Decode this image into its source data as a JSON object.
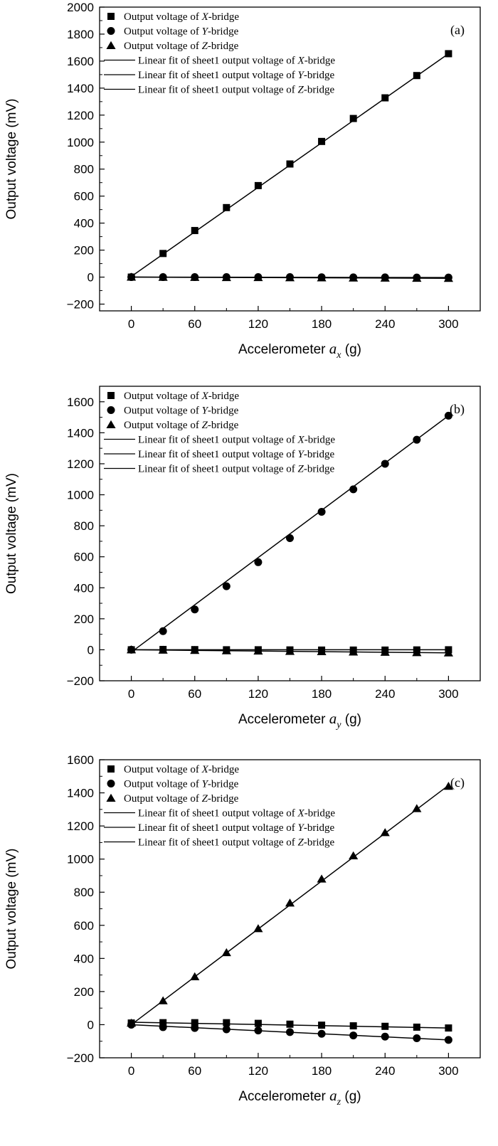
{
  "chart_data": [
    {
      "type": "scatter",
      "panel_label": "(a)",
      "xlabel": {
        "text": "Accelerometer ",
        "var": "a",
        "sub": "x",
        "unit": " (g)"
      },
      "ylabel": "Output voltage (mV)",
      "xlim": [
        -30,
        330
      ],
      "ylim": [
        -250,
        2000
      ],
      "xticks": [
        0,
        60,
        120,
        180,
        240,
        300
      ],
      "yticks": [
        -200,
        0,
        200,
        400,
        600,
        800,
        1000,
        1200,
        1400,
        1600,
        1800,
        2000
      ],
      "x": [
        0,
        30,
        60,
        90,
        120,
        150,
        180,
        210,
        240,
        270,
        300
      ],
      "series": [
        {
          "name": "X-bridge",
          "marker": "square",
          "values": [
            0,
            175,
            345,
            515,
            678,
            838,
            1005,
            1175,
            1328,
            1493,
            1655
          ]
        },
        {
          "name": "Y-bridge",
          "marker": "circle",
          "values": [
            0,
            0,
            0,
            0,
            0,
            0,
            -1,
            -2,
            -2,
            -3,
            -3
          ]
        },
        {
          "name": "Z-bridge",
          "marker": "triangle",
          "values": [
            0,
            -1,
            -2,
            -3,
            -3,
            -4,
            -5,
            -6,
            -7,
            -8,
            -9
          ]
        }
      ],
      "fits": [
        {
          "series": "X-bridge",
          "points": [
            [
              0,
              5
            ],
            [
              300,
              1655
            ]
          ]
        },
        {
          "series": "Y-bridge",
          "points": [
            [
              0,
              0
            ],
            [
              300,
              -3
            ]
          ]
        },
        {
          "series": "Z-bridge",
          "points": [
            [
              0,
              0
            ],
            [
              300,
              -9
            ]
          ]
        }
      ],
      "legend": {
        "position": "top-left",
        "entries": [
          {
            "marker": "square",
            "pre": "Output voltage of ",
            "var": "X",
            "post": "-bridge"
          },
          {
            "marker": "circle",
            "pre": "Output voltage of ",
            "var": "Y",
            "post": "-bridge"
          },
          {
            "marker": "triangle",
            "pre": "Output voltage of ",
            "var": "Z",
            "post": "-bridge"
          },
          {
            "marker": "line",
            "pre": "Linear fit of sheet1 output voltage of ",
            "var": "X",
            "post": "-bridge"
          },
          {
            "marker": "line",
            "pre": "Linear fit of sheet1 output voltage of ",
            "var": "Y",
            "post": "-bridge"
          },
          {
            "marker": "line",
            "pre": "Linear fit of sheet1 output voltage of ",
            "var": "Z",
            "post": "-bridge"
          }
        ]
      }
    },
    {
      "type": "scatter",
      "panel_label": "(b)",
      "xlabel": {
        "text": "Accelerometer ",
        "var": "a",
        "sub": "y",
        "unit": " (g)"
      },
      "ylabel": "Output voltage (mV)",
      "xlim": [
        -30,
        330
      ],
      "ylim": [
        -200,
        1700
      ],
      "xticks": [
        0,
        60,
        120,
        180,
        240,
        300
      ],
      "yticks": [
        -200,
        0,
        200,
        400,
        600,
        800,
        1000,
        1200,
        1400,
        1600
      ],
      "x": [
        0,
        30,
        60,
        90,
        120,
        150,
        180,
        210,
        240,
        270,
        300
      ],
      "series": [
        {
          "name": "X-bridge",
          "marker": "square",
          "values": [
            0,
            2,
            1,
            0,
            0,
            -1,
            -2,
            -2,
            -2,
            -1,
            0
          ]
        },
        {
          "name": "Y-bridge",
          "marker": "circle",
          "values": [
            0,
            120,
            260,
            410,
            565,
            720,
            890,
            1035,
            1200,
            1355,
            1510
          ]
        },
        {
          "name": "Z-bridge",
          "marker": "triangle",
          "values": [
            0,
            -2,
            -4,
            -6,
            -8,
            -10,
            -12,
            -14,
            -16,
            -18,
            -20
          ]
        }
      ],
      "fits": [
        {
          "series": "X-bridge",
          "points": [
            [
              0,
              0
            ],
            [
              300,
              0
            ]
          ]
        },
        {
          "series": "Y-bridge",
          "points": [
            [
              0,
              -15
            ],
            [
              300,
              1510
            ]
          ]
        },
        {
          "series": "Z-bridge",
          "points": [
            [
              0,
              0
            ],
            [
              300,
              -20
            ]
          ]
        }
      ],
      "legend": {
        "position": "top-left",
        "entries": [
          {
            "marker": "square",
            "pre": "Output voltage of ",
            "var": "X",
            "post": "-bridge"
          },
          {
            "marker": "circle",
            "pre": "Output voltage of ",
            "var": "Y",
            "post": "-bridge"
          },
          {
            "marker": "triangle",
            "pre": "Output voltage of ",
            "var": "Z",
            "post": "-bridge"
          },
          {
            "marker": "line",
            "pre": "Linear fit of sheet1 output voltage of ",
            "var": "X",
            "post": "-bridge"
          },
          {
            "marker": "line",
            "pre": "Linear fit of sheet1 output voltage of ",
            "var": "Y",
            "post": "-bridge"
          },
          {
            "marker": "line",
            "pre": "Linear fit of sheet1 output voltage of ",
            "var": "Z",
            "post": "-bridge"
          }
        ]
      }
    },
    {
      "type": "scatter",
      "panel_label": "(c)",
      "xlabel": {
        "text": "Accelerometer ",
        "var": "a",
        "sub": "z",
        "unit": " (g)"
      },
      "ylabel": "Output voltage (mV)",
      "xlim": [
        -30,
        330
      ],
      "ylim": [
        -200,
        1600
      ],
      "xticks": [
        0,
        60,
        120,
        180,
        240,
        300
      ],
      "yticks": [
        -200,
        0,
        200,
        400,
        600,
        800,
        1000,
        1200,
        1400,
        1600
      ],
      "x": [
        0,
        30,
        60,
        90,
        120,
        150,
        180,
        210,
        240,
        270,
        300
      ],
      "series": [
        {
          "name": "X-bridge",
          "marker": "square",
          "values": [
            10,
            12,
            12,
            12,
            8,
            3,
            -3,
            -7,
            -10,
            -15,
            -20
          ]
        },
        {
          "name": "Y-bridge",
          "marker": "circle",
          "values": [
            0,
            -15,
            -20,
            -28,
            -35,
            -45,
            -55,
            -65,
            -72,
            -82,
            -92
          ]
        },
        {
          "name": "Z-bridge",
          "marker": "triangle",
          "values": [
            10,
            145,
            290,
            435,
            580,
            735,
            880,
            1020,
            1160,
            1305,
            1440
          ]
        }
      ],
      "fits": [
        {
          "series": "X-bridge",
          "points": [
            [
              0,
              15
            ],
            [
              300,
              -20
            ]
          ]
        },
        {
          "series": "Y-bridge",
          "points": [
            [
              0,
              0
            ],
            [
              300,
              -92
            ]
          ]
        },
        {
          "series": "Z-bridge",
          "points": [
            [
              0,
              0
            ],
            [
              300,
              1445
            ]
          ]
        }
      ],
      "legend": {
        "position": "top-left",
        "entries": [
          {
            "marker": "square",
            "pre": "Output voltage of ",
            "var": "X",
            "post": "-bridge"
          },
          {
            "marker": "circle",
            "pre": "Output voltage of ",
            "var": "Y",
            "post": "-bridge"
          },
          {
            "marker": "triangle",
            "pre": "Output voltage of ",
            "var": "Z",
            "post": "-bridge"
          },
          {
            "marker": "line",
            "pre": "Linear fit of sheet1 output voltage of ",
            "var": "X",
            "post": "-bridge"
          },
          {
            "marker": "line",
            "pre": "Linear fit of sheet1 output voltage of ",
            "var": "Y",
            "post": "-bridge"
          },
          {
            "marker": "line",
            "pre": "Linear fit of sheet1 output voltage of ",
            "var": "Z",
            "post": "-bridge"
          }
        ]
      }
    }
  ]
}
